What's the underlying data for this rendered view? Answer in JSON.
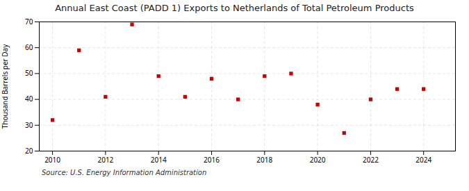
{
  "chart_data": {
    "type": "scatter",
    "title": "Annual East Coast (PADD 1) Exports to Netherlands of Total Petroleum Products",
    "ylabel": "Thousand Barrels per Day",
    "source": "Source: U.S. Energy Information Administration",
    "x": [
      2010,
      2011,
      2012,
      2013,
      2014,
      2015,
      2016,
      2017,
      2018,
      2019,
      2020,
      2021,
      2022,
      2023,
      2024
    ],
    "values": [
      32,
      59,
      41,
      69,
      49,
      41,
      48,
      40,
      49,
      50,
      38,
      27,
      40,
      44,
      44
    ],
    "color": "#cc0000",
    "marker": "square",
    "xlim": [
      2009.5,
      2025.2
    ],
    "xticks": [
      2010,
      2012,
      2014,
      2016,
      2018,
      2020,
      2022,
      2024
    ],
    "ylim": [
      20,
      70
    ],
    "yticks": [
      20,
      30,
      40,
      50,
      60,
      70
    ],
    "grid": true
  }
}
